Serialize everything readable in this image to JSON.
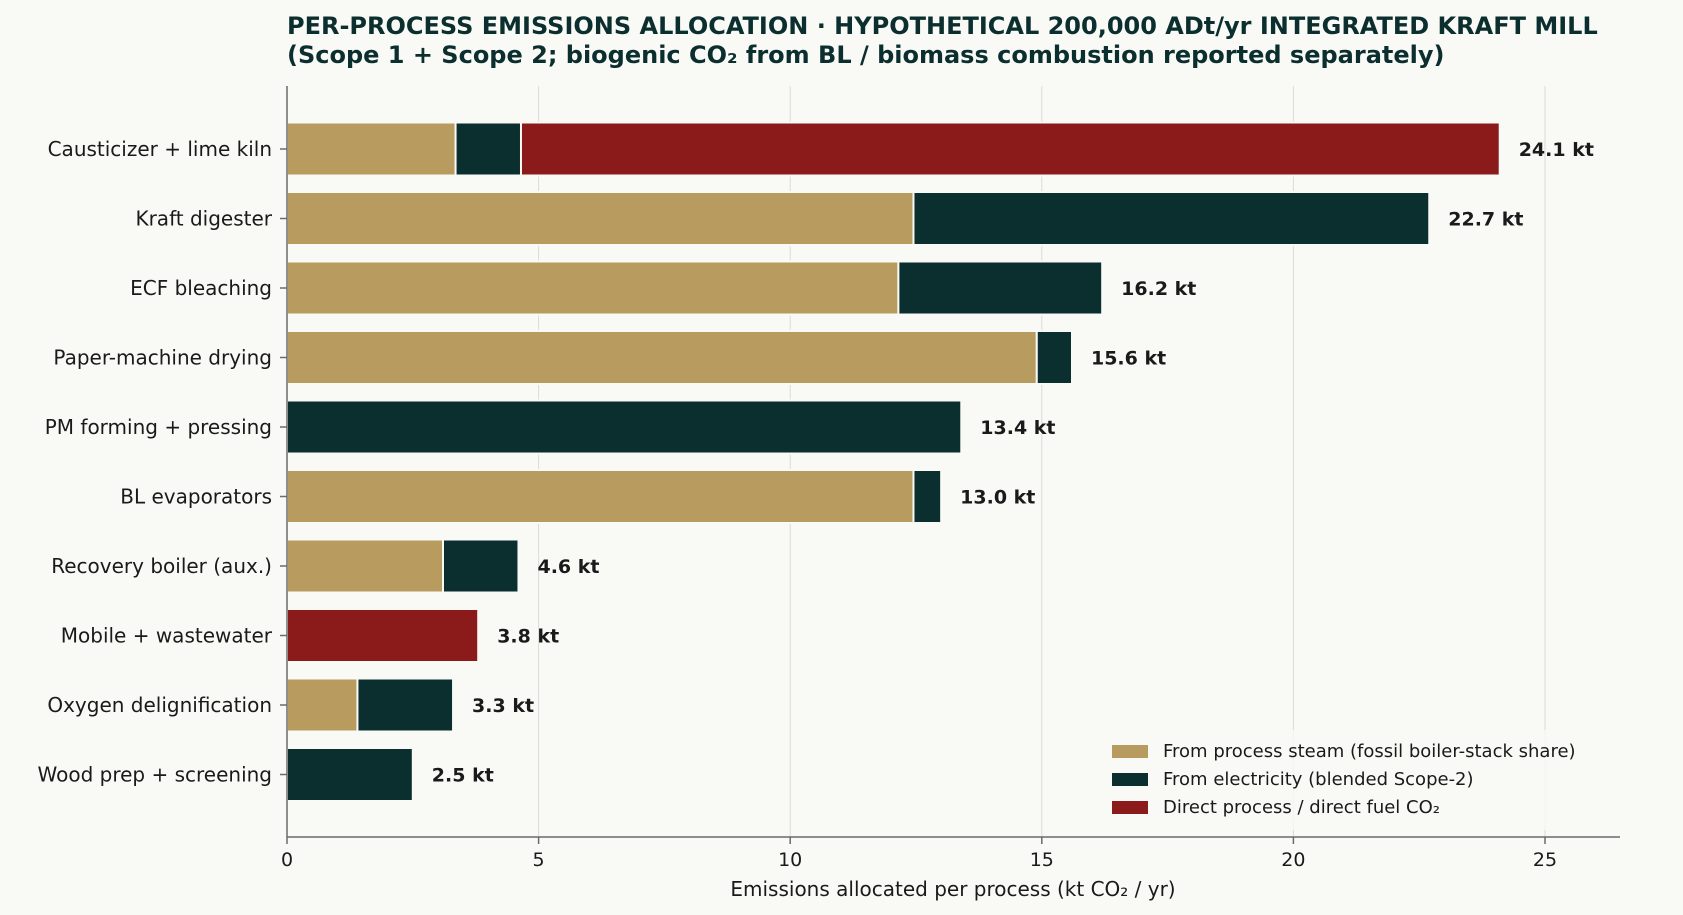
{
  "chart_data": {
    "type": "bar",
    "orientation": "horizontal",
    "stacked": true,
    "title": "PER-PROCESS EMISSIONS ALLOCATION  ·  HYPOTHETICAL 200,000 ADt/yr INTEGRATED KRAFT MILL",
    "subtitle": "(Scope 1 + Scope 2; biogenic CO₂ from BL / biomass combustion reported separately)",
    "xlabel": "Emissions allocated per process (kt CO₂ / yr)",
    "ylabel": "",
    "xlim": [
      0,
      28.5
    ],
    "xticks": [
      0,
      5,
      10,
      15,
      20,
      25
    ],
    "xtick_labels": [
      "0",
      "5",
      "10",
      "15",
      "20",
      "25"
    ],
    "grid": "x",
    "legend_position": "bottom-right",
    "categories": [
      "Causticizer + lime kiln",
      "Kraft digester",
      "ECF bleaching",
      "Paper-machine drying",
      "PM forming + pressing",
      "BL evaporators",
      "Recovery boiler (aux.)",
      "Mobile + wastewater",
      "Oxygen delignification",
      "Wood prep + screening"
    ],
    "series": [
      {
        "name": "From process steam (fossil boiler-stack share)",
        "color": "#b89b5e",
        "values": [
          3.35,
          12.45,
          12.15,
          14.9,
          0,
          12.45,
          3.1,
          0,
          1.4,
          0
        ]
      },
      {
        "name": "From electricity (blended Scope-2)",
        "color": "#0b2e2e",
        "values": [
          1.3,
          10.25,
          4.05,
          0.7,
          13.4,
          0.55,
          1.5,
          0,
          1.9,
          2.5
        ]
      },
      {
        "name": "Direct process / direct fuel CO₂",
        "color": "#8b1a1a",
        "values": [
          19.45,
          0,
          0,
          0,
          0,
          0,
          0,
          3.8,
          0,
          0
        ]
      }
    ],
    "totals": [
      24.1,
      22.7,
      16.2,
      15.6,
      13.4,
      13.0,
      4.6,
      3.8,
      3.3,
      2.5
    ],
    "total_labels": [
      "24.1 kt",
      "22.7 kt",
      "16.2 kt",
      "15.6 kt",
      "13.4 kt",
      "13.0 kt",
      "4.6 kt",
      "3.8 kt",
      "3.3 kt",
      "2.5 kt"
    ]
  }
}
